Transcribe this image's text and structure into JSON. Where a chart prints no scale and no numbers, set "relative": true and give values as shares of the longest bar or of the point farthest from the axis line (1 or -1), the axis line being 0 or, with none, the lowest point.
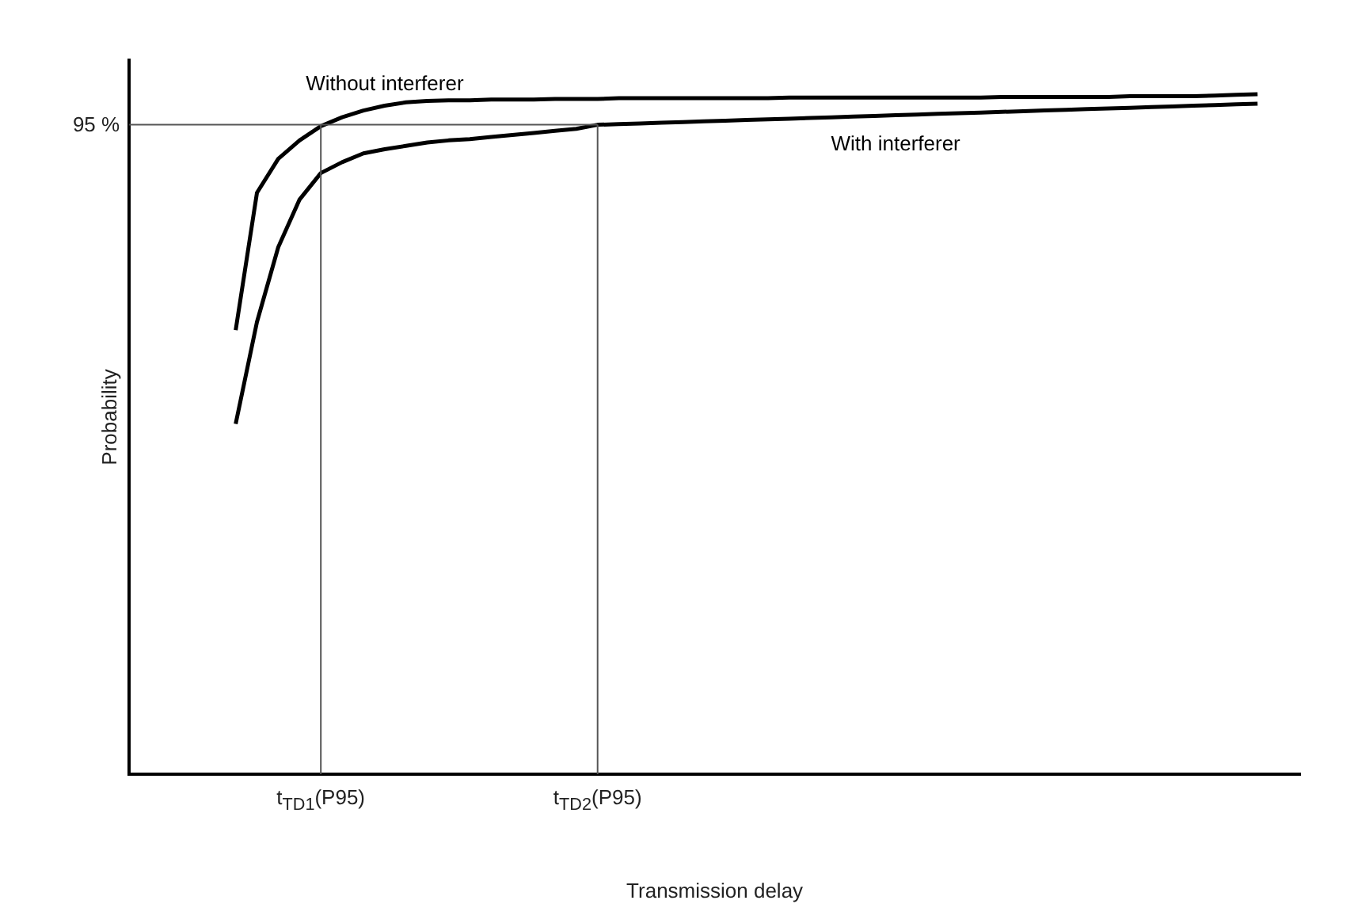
{
  "chart_data": {
    "type": "line",
    "relative": true,
    "xlabel": "Transmission delay",
    "ylabel": "Probability",
    "legend": false,
    "marker": "none",
    "line_style": "solid",
    "categories": [
      null,
      null,
      null,
      null,
      null,
      null,
      null,
      null,
      null,
      "t$_{TD1}$(P95)",
      null,
      null,
      null,
      null,
      null,
      null,
      null,
      null,
      null,
      null,
      null,
      null,
      "t$_{TD2}$(P95)",
      null,
      null,
      null,
      null,
      null,
      null,
      null,
      null,
      null,
      null,
      null,
      null,
      null,
      null,
      null,
      null,
      null,
      null,
      null,
      null,
      null,
      null,
      null,
      null,
      null,
      null,
      null,
      null,
      null,
      null,
      null,
      null,
      null
    ],
    "series": [
      {
        "name": "Without interferer",
        "color": "#000000",
        "values": [
          null,
          null,
          null,
          null,
          null,
          0.653,
          0.855,
          0.905,
          0.932,
          0.953,
          0.966,
          0.976,
          0.983,
          0.988,
          0.99,
          0.991,
          0.991,
          0.992,
          0.992,
          0.992,
          0.993,
          0.993,
          0.993,
          0.994,
          0.994,
          0.994,
          0.994,
          0.994,
          0.994,
          0.994,
          0.994,
          0.995,
          0.995,
          0.995,
          0.995,
          0.995,
          0.995,
          0.995,
          0.995,
          0.995,
          0.995,
          0.996,
          0.996,
          0.996,
          0.996,
          0.996,
          0.996,
          0.997,
          0.997,
          0.997,
          0.997,
          0.998,
          0.999,
          1,
          null,
          null
        ]
      },
      {
        "name": "With interferer",
        "color": "#000000",
        "values": [
          null,
          null,
          null,
          null,
          null,
          0.515,
          0.665,
          0.775,
          0.845,
          0.884,
          0.9,
          0.913,
          0.919,
          0.924,
          0.929,
          0.932,
          0.934,
          0.937,
          0.94,
          0.943,
          0.946,
          0.949,
          0.955,
          0.956,
          0.957,
          0.958,
          0.959,
          0.96,
          0.961,
          0.962,
          0.963,
          0.964,
          0.965,
          0.966,
          0.967,
          0.968,
          0.969,
          0.97,
          0.971,
          0.972,
          0.973,
          0.974,
          0.975,
          0.976,
          0.977,
          0.978,
          0.979,
          0.98,
          0.981,
          0.982,
          0.983,
          0.984,
          0.985,
          0.986,
          null,
          null
        ]
      }
    ],
    "ref_lines": [
      {
        "axis": "y",
        "value": 0.955,
        "label": "95 %",
        "color": "#555555"
      },
      {
        "axis": "x",
        "value": "t$_{TD1}$(P95)",
        "color": "#555555"
      },
      {
        "axis": "x",
        "value": "t$_{TD2}$(P95)",
        "color": "#555555"
      }
    ]
  }
}
